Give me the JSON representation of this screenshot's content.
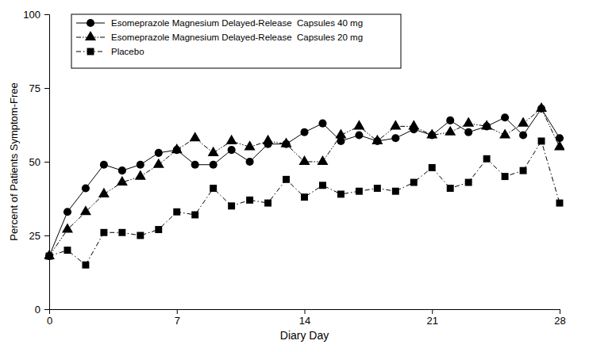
{
  "chart_data": {
    "type": "line",
    "x_label": "Diary Day",
    "y_label": "Percent of Patients Symptom-Free",
    "x": [
      0,
      1,
      2,
      3,
      4,
      5,
      6,
      7,
      8,
      9,
      10,
      11,
      12,
      13,
      14,
      15,
      16,
      17,
      18,
      19,
      20,
      21,
      22,
      23,
      24,
      25,
      26,
      27,
      28
    ],
    "xlim": [
      0,
      28
    ],
    "xticks": [
      0,
      7,
      14,
      21,
      28
    ],
    "ylim": [
      0,
      100
    ],
    "yticks": [
      0,
      25,
      50,
      75,
      100
    ],
    "grid": false,
    "legend": "top-left",
    "series": [
      {
        "name": "Esomeprazole Magnesium Delayed-Release  Capsules 40 mg",
        "color": "#000000",
        "marker": "circle",
        "line_style": "solid",
        "values": [
          18,
          33,
          41,
          49,
          47,
          49,
          53,
          54,
          49,
          49,
          54,
          50,
          56,
          56,
          60,
          63,
          57,
          59,
          57,
          58,
          61,
          59,
          64,
          60,
          62,
          65,
          59,
          68,
          58
        ]
      },
      {
        "name": "Esomeprazole Magnesium Delayed-Release  Capsules 20 mg",
        "color": "#000000",
        "marker": "triangle",
        "line_style": "dashdotdot",
        "values": [
          18,
          27,
          33,
          39,
          43,
          45,
          49,
          54,
          58,
          53,
          57,
          55,
          57,
          56,
          50,
          50,
          59,
          62,
          57,
          62,
          62,
          59,
          60,
          63,
          62,
          59,
          63,
          68,
          55
        ]
      },
      {
        "name": "Placebo",
        "color": "#000000",
        "marker": "square",
        "line_style": "dashdot",
        "values": [
          18,
          20,
          15,
          26,
          26,
          25,
          27,
          33,
          32,
          41,
          35,
          37,
          36,
          44,
          38,
          42,
          39,
          40,
          41,
          40,
          43,
          48,
          41,
          43,
          51,
          45,
          47,
          57,
          36
        ]
      }
    ]
  }
}
